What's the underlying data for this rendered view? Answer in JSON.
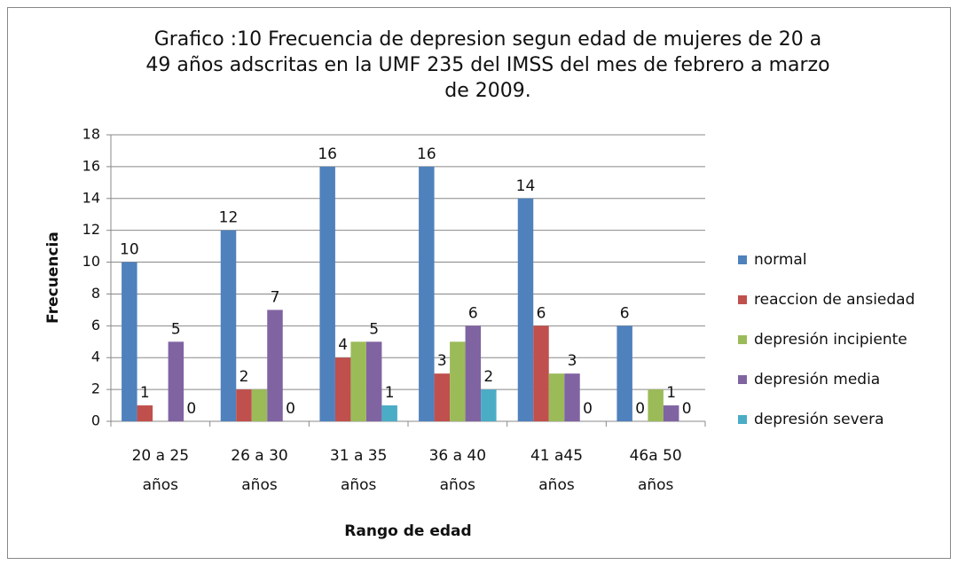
{
  "chart_data": {
    "type": "bar",
    "title": "Grafico :10  Frecuencia de depresion segun edad de mujeres de 20 a 49 años adscritas en la UMF 235 del IMSS del mes de febrero a marzo de 2009.",
    "xlabel": "Rango de edad",
    "ylabel": "Frecuencia",
    "categories": [
      "20 a 25 años",
      "26 a 30 años",
      "31 a 35 años",
      "36 a 40 años",
      "41 a45 años",
      "46a 50 años"
    ],
    "series": [
      {
        "name": "normal",
        "color": "#4f81bd",
        "values": [
          10,
          12,
          16,
          16,
          14,
          6
        ],
        "data_labels": true
      },
      {
        "name": "reaccion de ansiedad",
        "color": "#c0504d",
        "values": [
          1,
          2,
          4,
          3,
          6,
          0
        ],
        "data_labels": true
      },
      {
        "name": "depresión incipiente",
        "color": "#9bbb59",
        "values": [
          0,
          2,
          5,
          5,
          3,
          2
        ],
        "data_labels": false
      },
      {
        "name": "depresión media",
        "color": "#8064a2",
        "values": [
          5,
          7,
          5,
          6,
          3,
          1
        ],
        "data_labels": true
      },
      {
        "name": "depresión severa",
        "color": "#4bacc6",
        "values": [
          0,
          0,
          1,
          2,
          0,
          0
        ],
        "data_labels": true
      }
    ],
    "ylim": [
      0,
      18
    ],
    "yticks": [
      0,
      2,
      4,
      6,
      8,
      10,
      12,
      14,
      16,
      18
    ],
    "grid": true,
    "legend": "right"
  }
}
